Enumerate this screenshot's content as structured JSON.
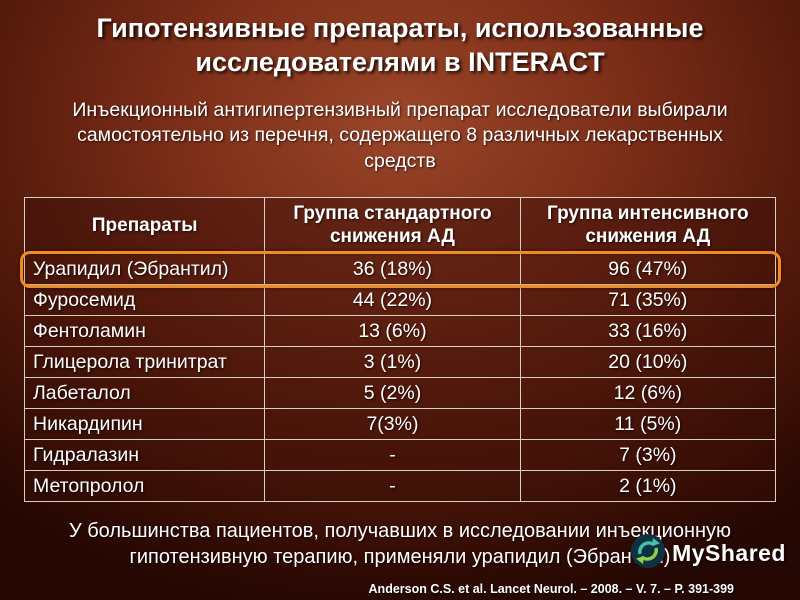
{
  "slide": {
    "title": "Гипотензивные препараты, использованные исследователями в INTERACT",
    "subtitle": "Инъекционный антигипертензивный препарат исследователи выбирали самостоятельно из перечня, содержащего 8 различных лекарственных средств",
    "footer_note": "У большинства пациентов, получавших в исследовании инъекционную гипотензивную терапию, применяли урапидил (Эбрантил)",
    "citation": "Anderson C.S. et al. Lancet Neurol. – 2008. – V. 7. – P. 391-399",
    "logo_text": "MyShared"
  },
  "colors": {
    "highlight_ring": "#ef8b1f",
    "background_center": "#9a4629",
    "background_edge": "#250703",
    "table_border": "#d6cfc4",
    "text": "#ffffff"
  },
  "chart_data": {
    "type": "table",
    "title": "Гипотензивные препараты, использованные исследователями в INTERACT",
    "columns": [
      "Препараты",
      "Группа стандартного снижения АД",
      "Группа интенсивного снижения АД"
    ],
    "rows": [
      [
        "Урапидил (Эбрантил)",
        "36 (18%)",
        "96 (47%)"
      ],
      [
        "Фуросемид",
        "44 (22%)",
        "71 (35%)"
      ],
      [
        "Фентоламин",
        "13 (6%)",
        "33 (16%)"
      ],
      [
        "Глицерола тринитрат",
        "3 (1%)",
        "20 (10%)"
      ],
      [
        "Лабеталол",
        "5 (2%)",
        "12 (6%)"
      ],
      [
        "Никардипин",
        "7(3%)",
        "11 (5%)"
      ],
      [
        "Гидралазин",
        "-",
        "7 (3%)"
      ],
      [
        "Метопролол",
        "-",
        "2 (1%)"
      ]
    ],
    "highlighted_row": 0
  }
}
